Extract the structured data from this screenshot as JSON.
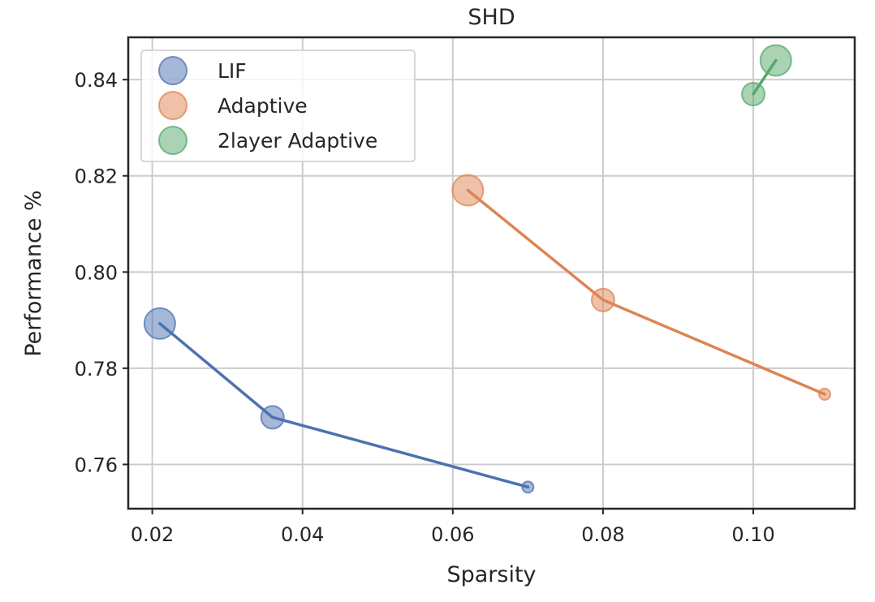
{
  "chart_data": {
    "type": "scatter",
    "title": "SHD",
    "xlabel": "Sparsity",
    "ylabel": "Performance %",
    "xlim": [
      0.0168,
      0.1135
    ],
    "ylim": [
      0.7508,
      0.8488
    ],
    "xticks": [
      0.02,
      0.04,
      0.06,
      0.08,
      0.1
    ],
    "xtick_labels": [
      "0.02",
      "0.04",
      "0.06",
      "0.08",
      "0.10"
    ],
    "yticks": [
      0.76,
      0.78,
      0.8,
      0.82,
      0.84
    ],
    "ytick_labels": [
      "0.76",
      "0.78",
      "0.80",
      "0.82",
      "0.84"
    ],
    "grid": true,
    "legend_position": "top-left",
    "series": [
      {
        "name": "LIF",
        "color": "#4c72b0",
        "points": [
          {
            "x": 0.021,
            "y": 0.7893,
            "size": 3
          },
          {
            "x": 0.036,
            "y": 0.7698,
            "size": 2
          },
          {
            "x": 0.07,
            "y": 0.7553,
            "size": 1
          }
        ]
      },
      {
        "name": "Adaptive",
        "color": "#dd8452",
        "points": [
          {
            "x": 0.062,
            "y": 0.817,
            "size": 3
          },
          {
            "x": 0.08,
            "y": 0.7942,
            "size": 2
          },
          {
            "x": 0.1095,
            "y": 0.7746,
            "size": 1
          }
        ]
      },
      {
        "name": "2layer Adaptive",
        "color": "#55a868",
        "points": [
          {
            "x": 0.1,
            "y": 0.837,
            "size": 2
          },
          {
            "x": 0.103,
            "y": 0.844,
            "size": 3
          }
        ]
      }
    ]
  }
}
